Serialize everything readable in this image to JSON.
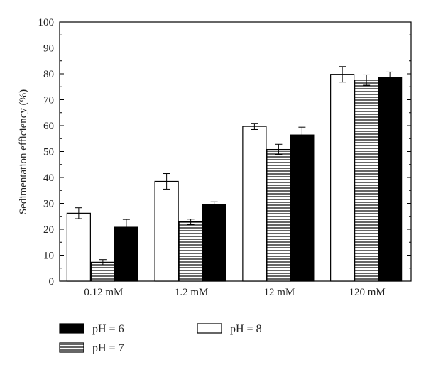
{
  "chart_data": {
    "type": "bar",
    "categories": [
      "0.12 mM",
      "1.2 mM",
      "12 mM",
      "120 mM"
    ],
    "series": [
      {
        "name": "pH = 8",
        "fill": "white",
        "values": [
          26.2,
          38.5,
          59.7,
          79.8
        ],
        "errors": [
          2.1,
          3.0,
          1.2,
          3.0
        ]
      },
      {
        "name": "pH = 7",
        "fill": "hatched",
        "values": [
          7.3,
          22.9,
          50.8,
          77.6
        ],
        "errors": [
          1.0,
          1.0,
          2.0,
          2.0
        ]
      },
      {
        "name": "pH = 6",
        "fill": "black",
        "values": [
          20.8,
          29.7,
          56.4,
          78.7
        ],
        "errors": [
          3.0,
          0.9,
          3.0,
          2.0
        ]
      }
    ],
    "xlabel": "",
    "ylabel": "Sedimentation efficiency (%)",
    "ylim": [
      0,
      100
    ],
    "yticks": [
      0,
      10,
      20,
      30,
      40,
      50,
      60,
      70,
      80,
      90,
      100
    ],
    "grid": false,
    "legend": {
      "placement": "bottom",
      "entries": [
        {
          "label": "pH = 6",
          "fill": "black"
        },
        {
          "label": "pH = 8",
          "fill": "white"
        },
        {
          "label": "pH = 7",
          "fill": "hatched"
        }
      ]
    }
  }
}
